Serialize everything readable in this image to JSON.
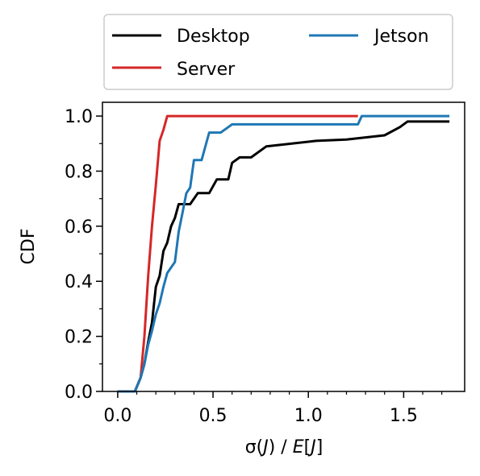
{
  "chart_data": {
    "type": "line",
    "xlabel_parts": [
      "σ(",
      "J",
      ") / ",
      "E",
      "[",
      "J",
      "]"
    ],
    "ylabel": "CDF",
    "xlim": [
      -0.08,
      1.82
    ],
    "ylim": [
      0.0,
      1.05
    ],
    "xticks": [
      0.0,
      0.5,
      1.0,
      1.5
    ],
    "xtick_labels": [
      "0.0",
      "0.5",
      "1.0",
      "1.5"
    ],
    "yticks": [
      0.0,
      0.2,
      0.4,
      0.6,
      0.8,
      1.0
    ],
    "ytick_labels": [
      "0.0",
      "0.2",
      "0.4",
      "0.6",
      "0.8",
      "1.0"
    ],
    "legend_position": "top, above plot, 2 columns",
    "series": [
      {
        "name": "Desktop",
        "color": "#000000",
        "x": [
          0.0,
          0.09,
          0.12,
          0.14,
          0.16,
          0.18,
          0.2,
          0.22,
          0.24,
          0.26,
          0.28,
          0.3,
          0.32,
          0.34,
          0.38,
          0.42,
          0.48,
          0.52,
          0.58,
          0.6,
          0.64,
          0.7,
          0.78,
          1.04,
          1.2,
          1.4,
          1.48,
          1.52,
          1.74
        ],
        "y": [
          0.0,
          0.0,
          0.05,
          0.1,
          0.18,
          0.25,
          0.38,
          0.42,
          0.51,
          0.54,
          0.6,
          0.63,
          0.68,
          0.68,
          0.68,
          0.72,
          0.72,
          0.77,
          0.77,
          0.83,
          0.85,
          0.85,
          0.89,
          0.91,
          0.915,
          0.93,
          0.96,
          0.98,
          0.98
        ]
      },
      {
        "name": "Server",
        "color": "#d62728",
        "x": [
          0.0,
          0.09,
          0.12,
          0.14,
          0.16,
          0.18,
          0.2,
          0.22,
          0.24,
          0.26,
          1.26
        ],
        "y": [
          0.0,
          0.0,
          0.05,
          0.2,
          0.42,
          0.6,
          0.75,
          0.91,
          0.95,
          1.0,
          1.0
        ]
      },
      {
        "name": "Jetson",
        "color": "#1f77b4",
        "x": [
          0.0,
          0.09,
          0.12,
          0.14,
          0.16,
          0.18,
          0.2,
          0.22,
          0.24,
          0.26,
          0.3,
          0.32,
          0.34,
          0.36,
          0.38,
          0.4,
          0.44,
          0.48,
          0.54,
          0.58,
          0.6,
          1.26,
          1.28,
          1.74
        ],
        "y": [
          0.0,
          0.0,
          0.05,
          0.1,
          0.17,
          0.22,
          0.28,
          0.32,
          0.38,
          0.43,
          0.47,
          0.58,
          0.65,
          0.72,
          0.74,
          0.84,
          0.84,
          0.94,
          0.94,
          0.96,
          0.97,
          0.97,
          1.0,
          1.0
        ]
      }
    ]
  }
}
